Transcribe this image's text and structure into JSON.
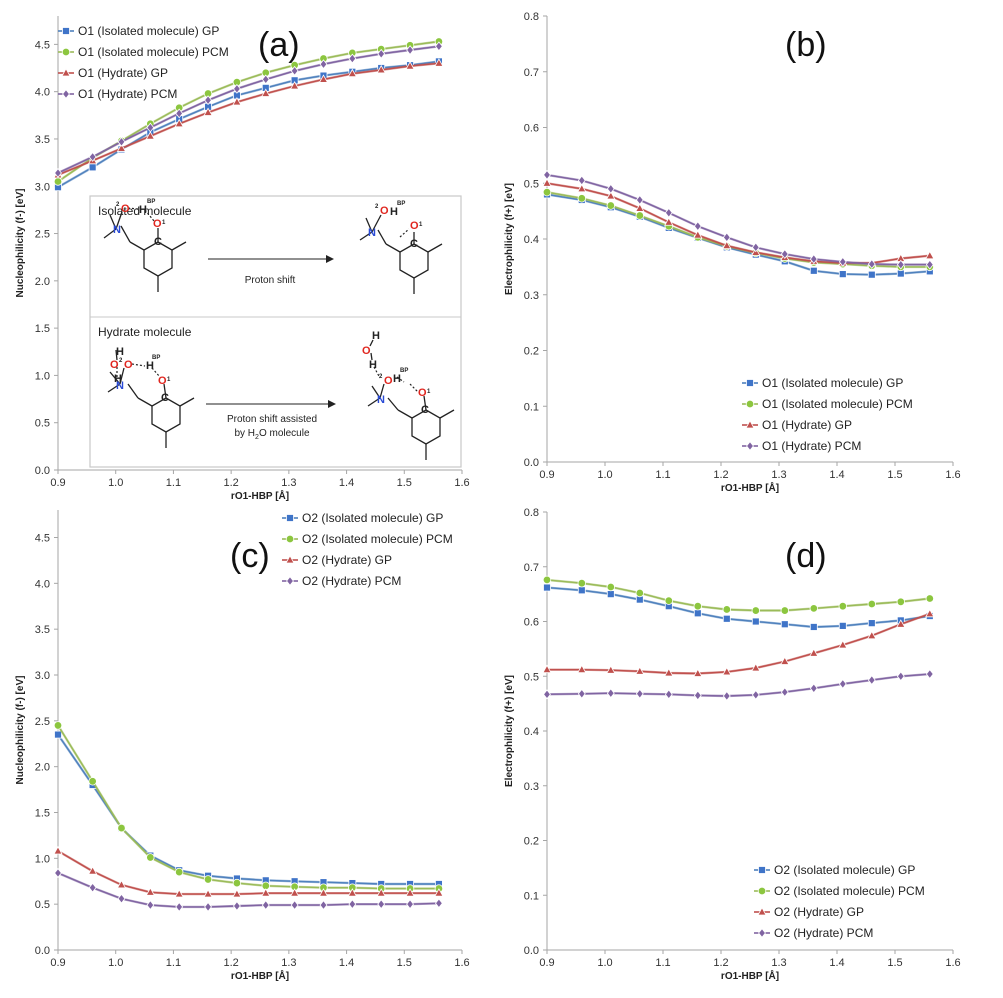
{
  "colors": {
    "iso_gp": "#4f81bd",
    "iso_gp_marker": "#3f74c8",
    "iso_pcm": "#9bbb59",
    "iso_pcm_marker": "#8cc63f",
    "hyd_gp": "#c0504d",
    "hyd_pcm": "#8064a2",
    "axis": "#a6a6a6"
  },
  "shared_x": [
    0.9,
    0.96,
    1.01,
    1.06,
    1.11,
    1.16,
    1.21,
    1.26,
    1.31,
    1.36,
    1.41,
    1.46,
    1.51,
    1.56
  ],
  "inset": {
    "isolated_title": "Isolated molecule",
    "isolated_arrow_label": "Proton shift",
    "hydrate_title": "Hydrate molecule",
    "hydrate_arrow_line1": "Proton shift assisted",
    "hydrate_arrow_line2_pre": "by H",
    "hydrate_arrow_line2_sub": "2",
    "hydrate_arrow_line2_post": "O molecule",
    "atoms": {
      "o": "O",
      "h": "H",
      "n": "N",
      "c": "C",
      "one": "1",
      "two": "2",
      "bp": "BP"
    }
  },
  "chart_data": [
    {
      "panel": "(a)",
      "type": "line",
      "xlabel": "rO1-HBP [Å]",
      "ylabel": "Nucleophilicity (f-) [eV]",
      "xlim": [
        0.9,
        1.6
      ],
      "ylim": [
        0.0,
        4.8
      ],
      "xticks": [
        "0.9",
        "1.0",
        "1.1",
        "1.2",
        "1.3",
        "1.4",
        "1.5",
        "1.6"
      ],
      "yticks": [
        "0.0",
        "0.5",
        "1.0",
        "1.5",
        "2.0",
        "2.5",
        "3.0",
        "3.5",
        "4.0",
        "4.5"
      ],
      "legend_position": "top-left",
      "series": [
        {
          "name": "O1 (Isolated molecule) GP",
          "marker": "square",
          "values": [
            2.99,
            3.2,
            3.39,
            3.57,
            3.71,
            3.84,
            3.96,
            4.04,
            4.12,
            4.17,
            4.21,
            4.25,
            4.28,
            4.32
          ]
        },
        {
          "name": "O1 (Isolated molecule) PCM",
          "marker": "circle",
          "values": [
            3.05,
            3.3,
            3.48,
            3.66,
            3.83,
            3.98,
            4.1,
            4.2,
            4.28,
            4.35,
            4.41,
            4.45,
            4.49,
            4.53
          ]
        },
        {
          "name": "O1 (Hydrate) GP",
          "marker": "triangle",
          "values": [
            3.12,
            3.27,
            3.4,
            3.53,
            3.66,
            3.78,
            3.89,
            3.98,
            4.06,
            4.13,
            4.19,
            4.23,
            4.27,
            4.3
          ]
        },
        {
          "name": "O1 (Hydrate) PCM",
          "marker": "diamond",
          "values": [
            3.14,
            3.31,
            3.47,
            3.62,
            3.77,
            3.91,
            4.03,
            4.13,
            4.22,
            4.29,
            4.35,
            4.4,
            4.44,
            4.48
          ]
        }
      ]
    },
    {
      "panel": "(b)",
      "type": "line",
      "xlabel": "rO1-HBP [Å]",
      "ylabel": "Electrophilicity (f+) [eV]",
      "xlim": [
        0.9,
        1.6
      ],
      "ylim": [
        0.0,
        0.8
      ],
      "xticks": [
        "0.9",
        "1.0",
        "1.1",
        "1.2",
        "1.3",
        "1.4",
        "1.5",
        "1.6"
      ],
      "yticks": [
        "0.0",
        "0.1",
        "0.2",
        "0.3",
        "0.4",
        "0.5",
        "0.6",
        "0.7",
        "0.8"
      ],
      "legend_position": "bottom-right",
      "series": [
        {
          "name": "O1 (Isolated molecule) GP",
          "marker": "square",
          "values": [
            0.48,
            0.47,
            0.457,
            0.44,
            0.42,
            0.402,
            0.385,
            0.372,
            0.36,
            0.343,
            0.337,
            0.336,
            0.338,
            0.342
          ]
        },
        {
          "name": "O1 (Isolated molecule) PCM",
          "marker": "circle",
          "values": [
            0.484,
            0.473,
            0.46,
            0.442,
            0.423,
            0.403,
            0.387,
            0.375,
            0.365,
            0.358,
            0.355,
            0.352,
            0.35,
            0.35
          ]
        },
        {
          "name": "O1 (Hydrate) GP",
          "marker": "triangle",
          "values": [
            0.5,
            0.49,
            0.477,
            0.455,
            0.43,
            0.407,
            0.388,
            0.376,
            0.367,
            0.36,
            0.357,
            0.357,
            0.365,
            0.37
          ]
        },
        {
          "name": "O1 (Hydrate) PCM",
          "marker": "diamond",
          "values": [
            0.515,
            0.505,
            0.49,
            0.47,
            0.447,
            0.423,
            0.403,
            0.385,
            0.373,
            0.364,
            0.359,
            0.355,
            0.354,
            0.354
          ]
        }
      ]
    },
    {
      "panel": "(c)",
      "type": "line",
      "xlabel": "rO1-HBP [Å]",
      "ylabel": "Nucleophilicity (f-) [eV]",
      "xlim": [
        0.9,
        1.6
      ],
      "ylim": [
        0.0,
        4.8
      ],
      "xticks": [
        "0.9",
        "1.0",
        "1.1",
        "1.2",
        "1.3",
        "1.4",
        "1.5",
        "1.6"
      ],
      "yticks": [
        "0.0",
        "0.5",
        "1.0",
        "1.5",
        "2.0",
        "2.5",
        "3.0",
        "3.5",
        "4.0",
        "4.5"
      ],
      "legend_position": "top-right",
      "series": [
        {
          "name": "O2 (Isolated molecule) GP",
          "marker": "square",
          "values": [
            2.35,
            1.8,
            1.33,
            1.03,
            0.87,
            0.81,
            0.78,
            0.76,
            0.75,
            0.74,
            0.73,
            0.72,
            0.72,
            0.72
          ]
        },
        {
          "name": "O2 (Isolated molecule) PCM",
          "marker": "circle",
          "values": [
            2.45,
            1.84,
            1.33,
            1.01,
            0.85,
            0.77,
            0.73,
            0.7,
            0.69,
            0.68,
            0.68,
            0.67,
            0.67,
            0.67
          ]
        },
        {
          "name": "O2 (Hydrate) GP",
          "marker": "triangle",
          "values": [
            1.08,
            0.86,
            0.71,
            0.63,
            0.61,
            0.61,
            0.61,
            0.62,
            0.62,
            0.62,
            0.62,
            0.62,
            0.62,
            0.62
          ]
        },
        {
          "name": "O2 (Hydrate) PCM",
          "marker": "diamond",
          "values": [
            0.84,
            0.68,
            0.56,
            0.49,
            0.47,
            0.47,
            0.48,
            0.49,
            0.49,
            0.49,
            0.5,
            0.5,
            0.5,
            0.51
          ]
        }
      ]
    },
    {
      "panel": "(d)",
      "type": "line",
      "xlabel": "rO1-HBP [Å]",
      "ylabel": "Electrophilicity (f+) [eV]",
      "xlim": [
        0.9,
        1.6
      ],
      "ylim": [
        0.0,
        0.8
      ],
      "xticks": [
        "0.9",
        "1.0",
        "1.1",
        "1.2",
        "1.3",
        "1.4",
        "1.5",
        "1.6"
      ],
      "yticks": [
        "0.0",
        "0.1",
        "0.2",
        "0.3",
        "0.4",
        "0.5",
        "0.6",
        "0.7",
        "0.8"
      ],
      "legend_position": "bottom-right",
      "series": [
        {
          "name": "O2 (Isolated molecule) GP",
          "marker": "square",
          "values": [
            0.662,
            0.657,
            0.65,
            0.64,
            0.628,
            0.615,
            0.605,
            0.6,
            0.595,
            0.59,
            0.592,
            0.597,
            0.602,
            0.61
          ]
        },
        {
          "name": "O2 (Isolated molecule) PCM",
          "marker": "circle",
          "values": [
            0.676,
            0.67,
            0.663,
            0.652,
            0.638,
            0.628,
            0.622,
            0.62,
            0.62,
            0.624,
            0.628,
            0.632,
            0.636,
            0.642
          ]
        },
        {
          "name": "O2 (Hydrate) GP",
          "marker": "triangle",
          "values": [
            0.512,
            0.512,
            0.511,
            0.509,
            0.506,
            0.505,
            0.508,
            0.515,
            0.527,
            0.542,
            0.557,
            0.574,
            0.595,
            0.614
          ]
        },
        {
          "name": "O2 (Hydrate) PCM",
          "marker": "diamond",
          "values": [
            0.467,
            0.468,
            0.469,
            0.468,
            0.467,
            0.465,
            0.464,
            0.466,
            0.471,
            0.478,
            0.486,
            0.493,
            0.5,
            0.504
          ]
        }
      ]
    }
  ]
}
